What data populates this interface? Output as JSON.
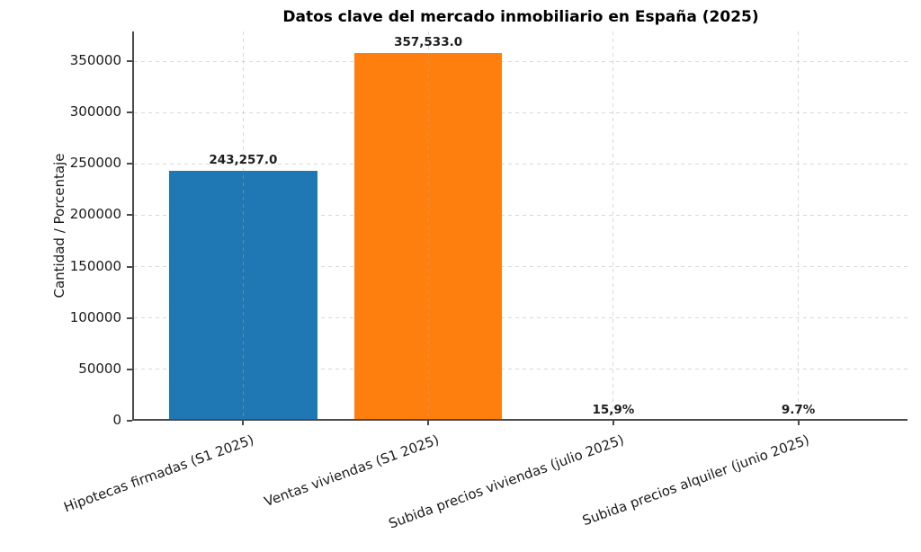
{
  "chart_data": {
    "type": "bar",
    "title": "Datos clave del mercado inmobiliario en España (2025)",
    "ylabel": "Cantidad / Porcentaje",
    "xlabel": "",
    "categories": [
      "Hipotecas firmadas (S1 2025)",
      "Ventas viviendas (S1 2025)",
      "Subida precios viviendas (julio 2025)",
      "Subida precios alquiler (junio 2025)"
    ],
    "values": [
      243257.0,
      357533.0,
      15.9,
      9.7
    ],
    "value_labels": [
      "243,257.0",
      "357,533.0",
      "15,9%",
      "9.7%"
    ],
    "bar_colors": [
      "#1f77b4",
      "#ff7f0e"
    ],
    "yticks": [
      0,
      50000,
      100000,
      150000,
      200000,
      250000,
      300000,
      350000
    ],
    "ylim": [
      0,
      378875
    ],
    "grid": true,
    "grid_style": "dashed",
    "grid_color": "#d9d9d9",
    "axis_color": "#4a4a4a",
    "legend": "none",
    "x_tick_rotation": 20
  }
}
